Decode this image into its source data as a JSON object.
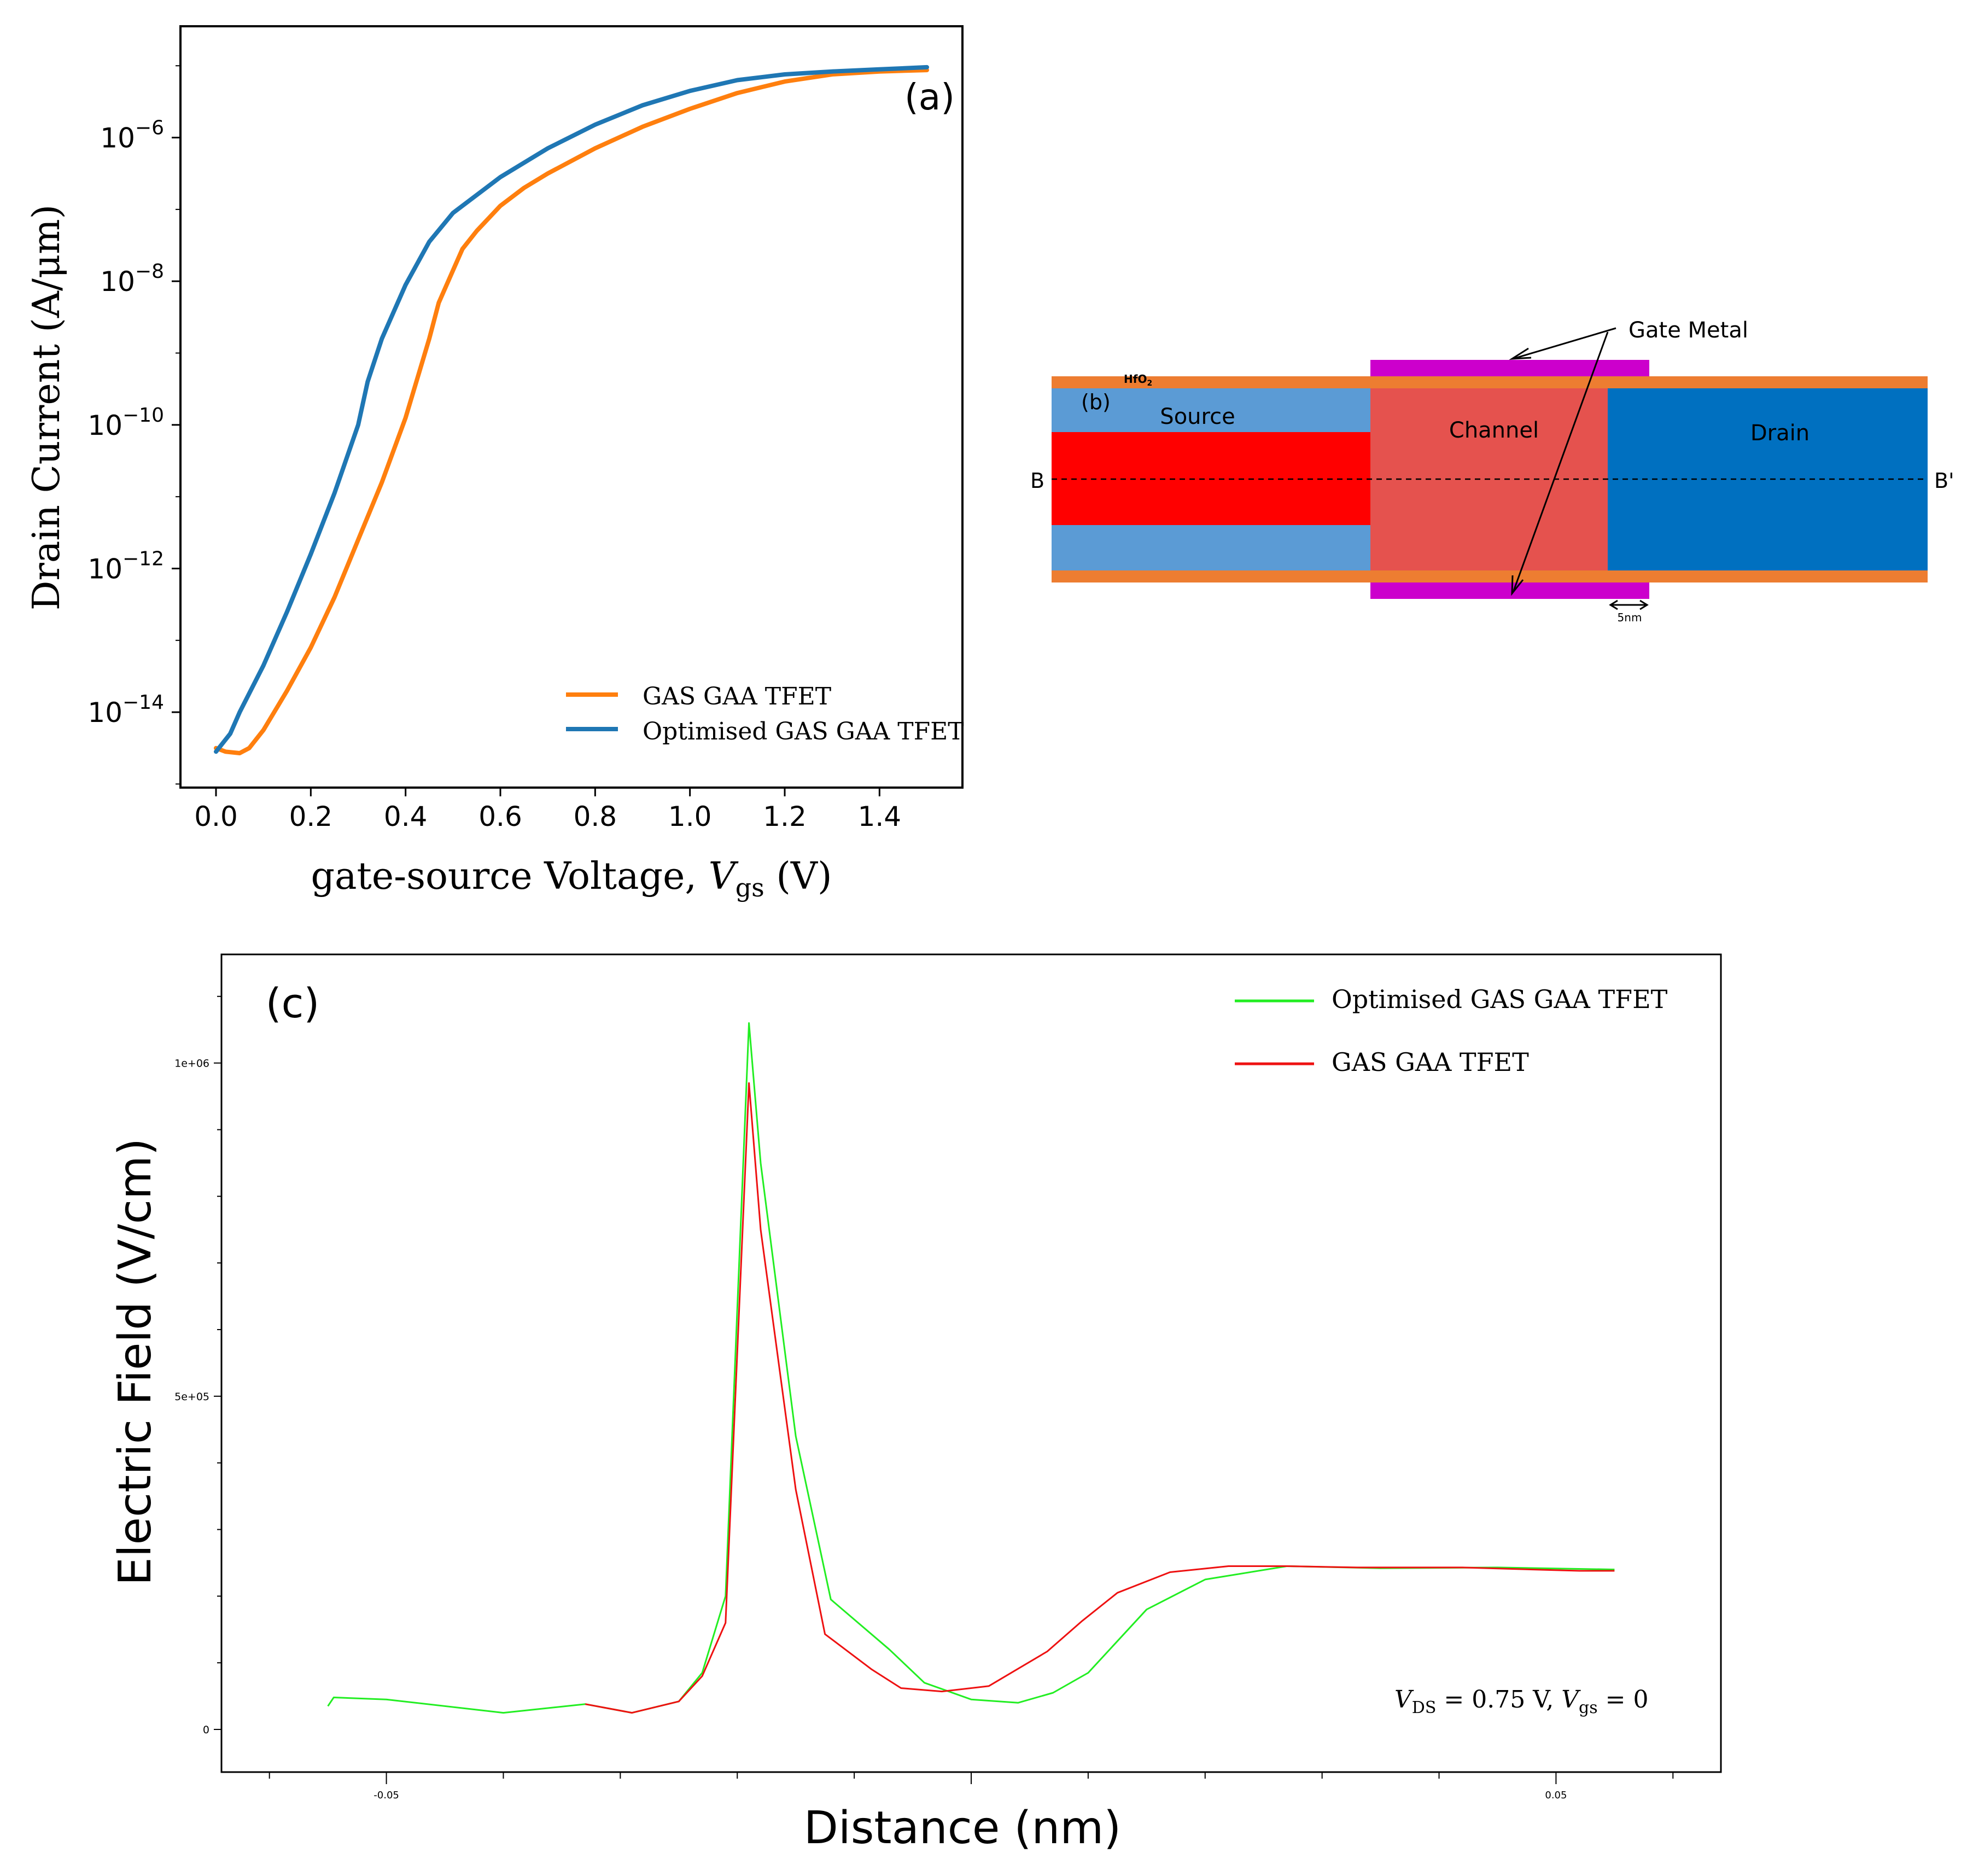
{
  "chart_data": [
    {
      "id": "a",
      "type": "line",
      "panel_label": "(a)",
      "xlabel_main": "gate-source Voltage, ",
      "xlabel_var": "V",
      "xlabel_sub": "gs",
      "xlabel_unit": " (V)",
      "ylabel": "Drain Current (A/μm)",
      "yscale": "log",
      "xlim": [
        -0.075,
        1.575
      ],
      "ylim_exp": [
        -15.05,
        -4.45
      ],
      "xticks": [
        {
          "v": 0.0,
          "label": "0.0"
        },
        {
          "v": 0.2,
          "label": "0.2"
        },
        {
          "v": 0.4,
          "label": "0.4"
        },
        {
          "v": 0.6,
          "label": "0.6"
        },
        {
          "v": 0.8,
          "label": "0.8"
        },
        {
          "v": 1.0,
          "label": "1.0"
        },
        {
          "v": 1.2,
          "label": "1.2"
        },
        {
          "v": 1.4,
          "label": "1.4"
        }
      ],
      "yticks": [
        {
          "exp": -6,
          "base": "10",
          "sup": "−6"
        },
        {
          "exp": -8,
          "base": "10",
          "sup": "−8"
        },
        {
          "exp": -10,
          "base": "10",
          "sup": "−10"
        },
        {
          "exp": -12,
          "base": "10",
          "sup": "−12"
        },
        {
          "exp": -14,
          "base": "10",
          "sup": "−14"
        }
      ],
      "legend_position": "lower-right",
      "series": [
        {
          "name": "GAS GAA TFET",
          "color": "#ff7f0e",
          "x": [
            0.0,
            0.02,
            0.05,
            0.07,
            0.1,
            0.15,
            0.2,
            0.25,
            0.3,
            0.35,
            0.4,
            0.45,
            0.47,
            0.5,
            0.52,
            0.55,
            0.6,
            0.65,
            0.7,
            0.8,
            0.9,
            1.0,
            1.1,
            1.2,
            1.3,
            1.4,
            1.5
          ],
          "log10_y": [
            -14.5,
            -14.55,
            -14.57,
            -14.5,
            -14.25,
            -13.7,
            -13.1,
            -12.4,
            -11.6,
            -10.8,
            -9.9,
            -8.8,
            -8.3,
            -7.85,
            -7.55,
            -7.3,
            -6.95,
            -6.7,
            -6.5,
            -6.15,
            -5.85,
            -5.6,
            -5.38,
            -5.22,
            -5.12,
            -5.08,
            -5.06
          ]
        },
        {
          "name": "Optimised GAS GAA TFET",
          "color": "#1f77b4",
          "x": [
            0.0,
            0.03,
            0.05,
            0.1,
            0.15,
            0.2,
            0.25,
            0.3,
            0.32,
            0.35,
            0.4,
            0.45,
            0.5,
            0.6,
            0.7,
            0.8,
            0.9,
            1.0,
            1.1,
            1.2,
            1.3,
            1.4,
            1.5
          ],
          "log10_y": [
            -14.55,
            -14.3,
            -14.0,
            -13.35,
            -12.6,
            -11.8,
            -10.95,
            -10.0,
            -9.4,
            -8.8,
            -8.05,
            -7.45,
            -7.05,
            -6.55,
            -6.15,
            -5.82,
            -5.55,
            -5.35,
            -5.2,
            -5.12,
            -5.08,
            -5.05,
            -5.02
          ]
        }
      ]
    },
    {
      "id": "c",
      "type": "line",
      "panel_label": "(c)",
      "xlabel": "Distance (nm)",
      "ylabel": "Electric Field (V/cm)",
      "xlim": [
        -0.0641,
        0.0641
      ],
      "ylim": [
        -64000,
        1163000
      ],
      "xticks": [
        {
          "v": -0.05,
          "label": "-0.05"
        },
        {
          "v": 0.05,
          "label": "0.05"
        }
      ],
      "yticks": [
        {
          "v": 0,
          "label": "0"
        },
        {
          "v": 500000,
          "label": "5e+05"
        },
        {
          "v": 1000000,
          "label": "1e+06"
        }
      ],
      "annotation": {
        "v1": "V",
        "s1": "DS",
        "t1": " = 0.75 V, ",
        "v2": "V",
        "s2": "gs",
        "t2": " = 0"
      },
      "legend_position": "top-right",
      "series": [
        {
          "name": "Optimised GAS GAA TFET",
          "color": "#22ee22",
          "x": [
            -0.055,
            -0.0545,
            -0.05,
            -0.04,
            -0.033,
            -0.029,
            -0.025,
            -0.023,
            -0.021,
            -0.019,
            -0.018,
            -0.015,
            -0.012,
            -0.007,
            -0.004,
            0.0,
            0.004,
            0.007,
            0.01,
            0.015,
            0.02,
            0.027,
            0.035,
            0.045,
            0.055
          ],
          "y": [
            35000,
            48000,
            45000,
            25000,
            38000,
            25000,
            42000,
            85000,
            200000,
            1060000,
            850000,
            440000,
            195000,
            120000,
            70000,
            45000,
            40000,
            55000,
            85000,
            180000,
            225000,
            245000,
            242000,
            243000,
            240000
          ]
        },
        {
          "name": "GAS GAA TFET",
          "color": "#ee1111",
          "x": [
            -0.033,
            -0.029,
            -0.025,
            -0.023,
            -0.021,
            -0.019,
            -0.018,
            -0.015,
            -0.0125,
            -0.0085,
            -0.006,
            -0.0025,
            0.0015,
            0.0065,
            0.0095,
            0.0125,
            0.017,
            0.022,
            0.027,
            0.033,
            0.042,
            0.052,
            0.055
          ],
          "y": [
            38000,
            25000,
            42000,
            80000,
            160000,
            970000,
            750000,
            360000,
            143000,
            90000,
            62000,
            57000,
            65000,
            117000,
            163000,
            205000,
            236000,
            245000,
            245000,
            243000,
            243000,
            238000,
            238000
          ]
        }
      ]
    }
  ],
  "diagram_b": {
    "panel_label": "(b)",
    "hfo2_label": "HfO",
    "hfo2_sub": "2",
    "source_label": "Source",
    "channel_label": "Channel",
    "drain_label": "Drain",
    "gate_metal_label": "Gate Metal",
    "cut_left": "B",
    "cut_right": "B'",
    "scale_label": "5nm",
    "colors": {
      "oxide": "#ed7d31",
      "source": "#5b9bd5",
      "source_core": "#ff0000",
      "channel": "#e5524e",
      "drain": "#0070c0",
      "gate": "#cc00cc"
    }
  }
}
